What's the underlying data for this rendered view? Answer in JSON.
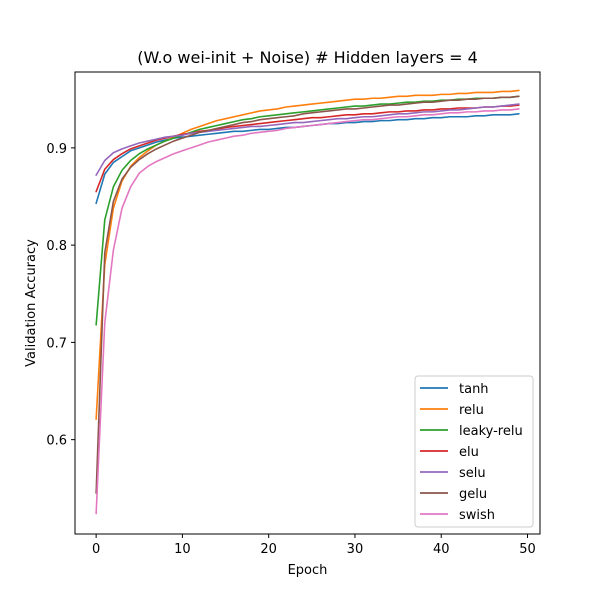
{
  "chart_data": {
    "type": "line",
    "title": "(W.o wei-init + Noise) # Hidden layers = 4",
    "xlabel": "Epoch",
    "ylabel": "Validation Accuracy",
    "xlim": [
      -2.45,
      51.45
    ],
    "ylim": [
      0.503,
      0.978
    ],
    "xticks": [
      0,
      10,
      20,
      30,
      40,
      50
    ],
    "yticks": [
      0.6,
      0.7,
      0.8,
      0.9
    ],
    "ytick_labels": [
      "0.6",
      "0.7",
      "0.8",
      "0.9"
    ],
    "grid": false,
    "legend_position": "lower-right",
    "x": [
      0,
      1,
      2,
      3,
      4,
      5,
      6,
      7,
      8,
      9,
      10,
      11,
      12,
      13,
      14,
      15,
      16,
      17,
      18,
      19,
      20,
      21,
      22,
      23,
      24,
      25,
      26,
      27,
      28,
      29,
      30,
      31,
      32,
      33,
      34,
      35,
      36,
      37,
      38,
      39,
      40,
      41,
      42,
      43,
      44,
      45,
      46,
      47,
      48,
      49
    ],
    "series": [
      {
        "name": "tanh",
        "color": "#1f77b4",
        "values": [
          0.843,
          0.873,
          0.885,
          0.891,
          0.897,
          0.9,
          0.903,
          0.906,
          0.908,
          0.91,
          0.911,
          0.912,
          0.913,
          0.914,
          0.915,
          0.916,
          0.917,
          0.917,
          0.918,
          0.919,
          0.919,
          0.92,
          0.921,
          0.921,
          0.922,
          0.923,
          0.924,
          0.925,
          0.925,
          0.926,
          0.926,
          0.927,
          0.927,
          0.928,
          0.928,
          0.929,
          0.929,
          0.93,
          0.93,
          0.931,
          0.931,
          0.932,
          0.932,
          0.932,
          0.933,
          0.933,
          0.934,
          0.934,
          0.934,
          0.935
        ]
      },
      {
        "name": "relu",
        "color": "#ff7f0e",
        "values": [
          0.621,
          0.78,
          0.838,
          0.866,
          0.881,
          0.89,
          0.897,
          0.903,
          0.907,
          0.911,
          0.915,
          0.919,
          0.922,
          0.925,
          0.928,
          0.93,
          0.932,
          0.934,
          0.936,
          0.938,
          0.939,
          0.94,
          0.942,
          0.943,
          0.944,
          0.945,
          0.946,
          0.947,
          0.948,
          0.949,
          0.95,
          0.95,
          0.951,
          0.951,
          0.952,
          0.953,
          0.953,
          0.954,
          0.954,
          0.954,
          0.955,
          0.955,
          0.956,
          0.956,
          0.957,
          0.957,
          0.957,
          0.958,
          0.958,
          0.959
        ]
      },
      {
        "name": "leaky-relu",
        "color": "#2ca02c",
        "values": [
          0.718,
          0.826,
          0.86,
          0.877,
          0.887,
          0.894,
          0.899,
          0.903,
          0.907,
          0.91,
          0.913,
          0.916,
          0.919,
          0.921,
          0.923,
          0.925,
          0.927,
          0.929,
          0.93,
          0.932,
          0.933,
          0.934,
          0.935,
          0.936,
          0.937,
          0.938,
          0.939,
          0.94,
          0.941,
          0.942,
          0.943,
          0.943,
          0.944,
          0.945,
          0.945,
          0.946,
          0.947,
          0.947,
          0.948,
          0.948,
          0.949,
          0.949,
          0.95,
          0.95,
          0.951,
          0.951,
          0.951,
          0.952,
          0.952,
          0.953
        ]
      },
      {
        "name": "elu",
        "color": "#d62728",
        "values": [
          0.855,
          0.878,
          0.888,
          0.894,
          0.899,
          0.902,
          0.905,
          0.908,
          0.91,
          0.912,
          0.914,
          0.915,
          0.917,
          0.918,
          0.919,
          0.921,
          0.922,
          0.923,
          0.924,
          0.925,
          0.926,
          0.927,
          0.928,
          0.929,
          0.93,
          0.931,
          0.931,
          0.932,
          0.933,
          0.934,
          0.934,
          0.935,
          0.935,
          0.936,
          0.937,
          0.937,
          0.938,
          0.938,
          0.939,
          0.939,
          0.94,
          0.94,
          0.941,
          0.941,
          0.941,
          0.942,
          0.942,
          0.943,
          0.943,
          0.944
        ]
      },
      {
        "name": "selu",
        "color": "#9467bd",
        "values": [
          0.872,
          0.887,
          0.895,
          0.899,
          0.902,
          0.905,
          0.907,
          0.909,
          0.911,
          0.912,
          0.913,
          0.915,
          0.916,
          0.917,
          0.918,
          0.919,
          0.92,
          0.921,
          0.922,
          0.922,
          0.923,
          0.924,
          0.925,
          0.926,
          0.926,
          0.927,
          0.928,
          0.929,
          0.93,
          0.93,
          0.931,
          0.932,
          0.932,
          0.933,
          0.934,
          0.935,
          0.935,
          0.936,
          0.937,
          0.937,
          0.938,
          0.939,
          0.939,
          0.94,
          0.941,
          0.942,
          0.942,
          0.943,
          0.944,
          0.945
        ]
      },
      {
        "name": "gelu",
        "color": "#8c564b",
        "values": [
          0.545,
          0.792,
          0.845,
          0.868,
          0.88,
          0.888,
          0.894,
          0.899,
          0.903,
          0.907,
          0.91,
          0.913,
          0.916,
          0.918,
          0.92,
          0.922,
          0.924,
          0.926,
          0.927,
          0.929,
          0.93,
          0.931,
          0.932,
          0.933,
          0.935,
          0.936,
          0.937,
          0.938,
          0.939,
          0.94,
          0.94,
          0.941,
          0.942,
          0.943,
          0.944,
          0.944,
          0.945,
          0.946,
          0.947,
          0.947,
          0.948,
          0.949,
          0.949,
          0.95,
          0.95,
          0.951,
          0.951,
          0.952,
          0.952,
          0.953
        ]
      },
      {
        "name": "swish",
        "color": "#e377c2",
        "values": [
          0.524,
          0.72,
          0.795,
          0.838,
          0.86,
          0.874,
          0.881,
          0.886,
          0.89,
          0.894,
          0.897,
          0.9,
          0.903,
          0.906,
          0.908,
          0.91,
          0.912,
          0.913,
          0.915,
          0.916,
          0.917,
          0.918,
          0.92,
          0.921,
          0.922,
          0.923,
          0.924,
          0.925,
          0.926,
          0.927,
          0.928,
          0.929,
          0.929,
          0.93,
          0.931,
          0.932,
          0.932,
          0.933,
          0.934,
          0.934,
          0.935,
          0.936,
          0.936,
          0.937,
          0.937,
          0.938,
          0.938,
          0.939,
          0.939,
          0.94
        ]
      }
    ]
  }
}
